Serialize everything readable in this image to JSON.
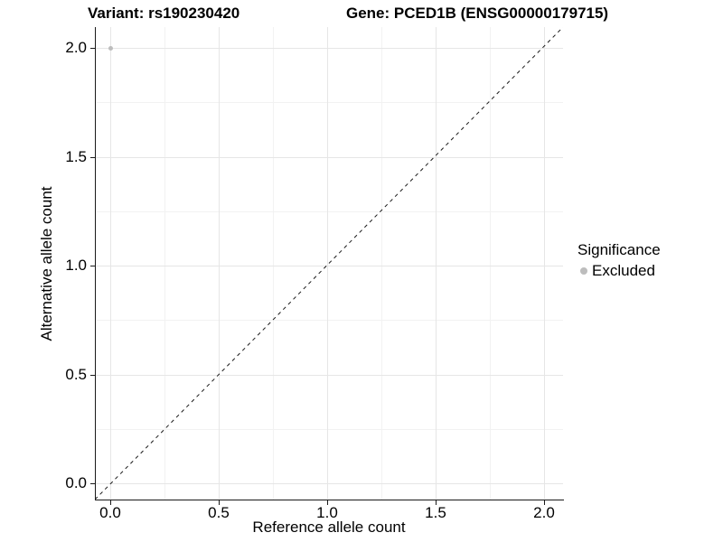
{
  "colors": {
    "background": "#ffffff",
    "axis_line": "#1a1a1a",
    "grid_major": "#e6e6e6",
    "grid_minor": "#f2f2f2",
    "dashed_line": "#1a1a1a",
    "excluded_gray": "#bdbdbd",
    "text": "#000000"
  },
  "chart_data": {
    "type": "scatter",
    "titles": {
      "left": "Variant: rs190230420",
      "right": "Gene: PCED1B (ENSG00000179715)"
    },
    "xlabel": "Reference allele count",
    "ylabel": "Alternative allele count",
    "xlim": [
      -0.07,
      2.09
    ],
    "ylim": [
      -0.075,
      2.095
    ],
    "x_ticks": {
      "values": [
        0.0,
        0.5,
        1.0,
        1.5,
        2.0
      ],
      "labels": [
        "0.0",
        "0.5",
        "1.0",
        "1.5",
        "2.0"
      ]
    },
    "y_ticks": {
      "values": [
        0.0,
        0.5,
        1.0,
        1.5,
        2.0
      ],
      "labels": [
        "0.0",
        "0.5",
        "1.0",
        "1.5",
        "2.0"
      ]
    },
    "minor_x": [
      0.25,
      0.75,
      1.25,
      1.75
    ],
    "minor_y": [
      0.25,
      0.75,
      1.25,
      1.75
    ],
    "grid": "major and minor gridlines on white background",
    "identity_line": {
      "equation": "y = x",
      "style": "dashed"
    },
    "points": [
      {
        "x": 0.0,
        "y": 2.0,
        "significance": "Excluded",
        "color": "#bdbdbd"
      }
    ],
    "legend": {
      "title": "Significance",
      "position": "right",
      "items": [
        {
          "label": "Excluded",
          "color": "#bdbdbd"
        }
      ]
    }
  }
}
